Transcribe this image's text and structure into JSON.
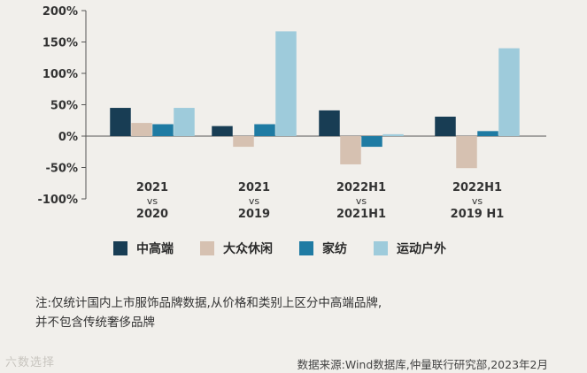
{
  "chart_data": {
    "type": "bar",
    "categories": [
      [
        "2021",
        "vs",
        "2020"
      ],
      [
        "2021",
        "vs",
        "2019"
      ],
      [
        "2022H1",
        "vs",
        "2021H1"
      ],
      [
        "2022H1",
        "vs",
        "2019 H1"
      ]
    ],
    "series": [
      {
        "name": "中高端",
        "color": "#183d54",
        "values": [
          45,
          16,
          41,
          31
        ]
      },
      {
        "name": "大众休闲",
        "color": "#d6c1b1",
        "values": [
          21,
          -17,
          -45,
          -51
        ]
      },
      {
        "name": "家纺",
        "color": "#1f7ba3",
        "values": [
          19,
          19,
          -17,
          8
        ]
      },
      {
        "name": "运动户外",
        "color": "#9ecbdb",
        "values": [
          45,
          167,
          3,
          140
        ]
      }
    ],
    "yticks": [
      "200%",
      "150%",
      "100%",
      "50%",
      "0%",
      "-50%",
      "-100%"
    ],
    "ylim": [
      -100,
      200
    ],
    "grid": false,
    "legend_position": "bottom"
  },
  "note_line1": "注:仅统计国内上市服饰品牌数据,从价格和类别上区分中高端品牌,",
  "note_line2": "并不包含传统奢侈品牌",
  "source": "数据来源:Wind数据库,仲量联行研究部,2023年2月",
  "watermark": "六数选择"
}
